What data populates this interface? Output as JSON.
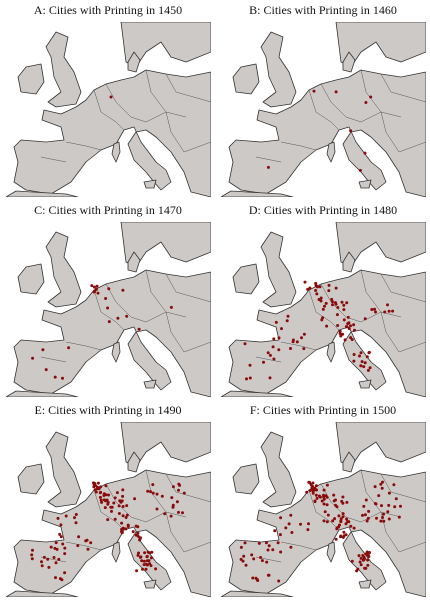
{
  "panels": [
    {
      "title": "A: Cities with Printing in 1450"
    },
    {
      "title": "B: Cities with Printing in 1460"
    },
    {
      "title": "C: Cities with Printing in 1470"
    },
    {
      "title": "D: Cities with Printing in 1480"
    },
    {
      "title": "E: Cities with Printing in 1490"
    },
    {
      "title": "F: Cities with Printing in 1500"
    }
  ]
}
